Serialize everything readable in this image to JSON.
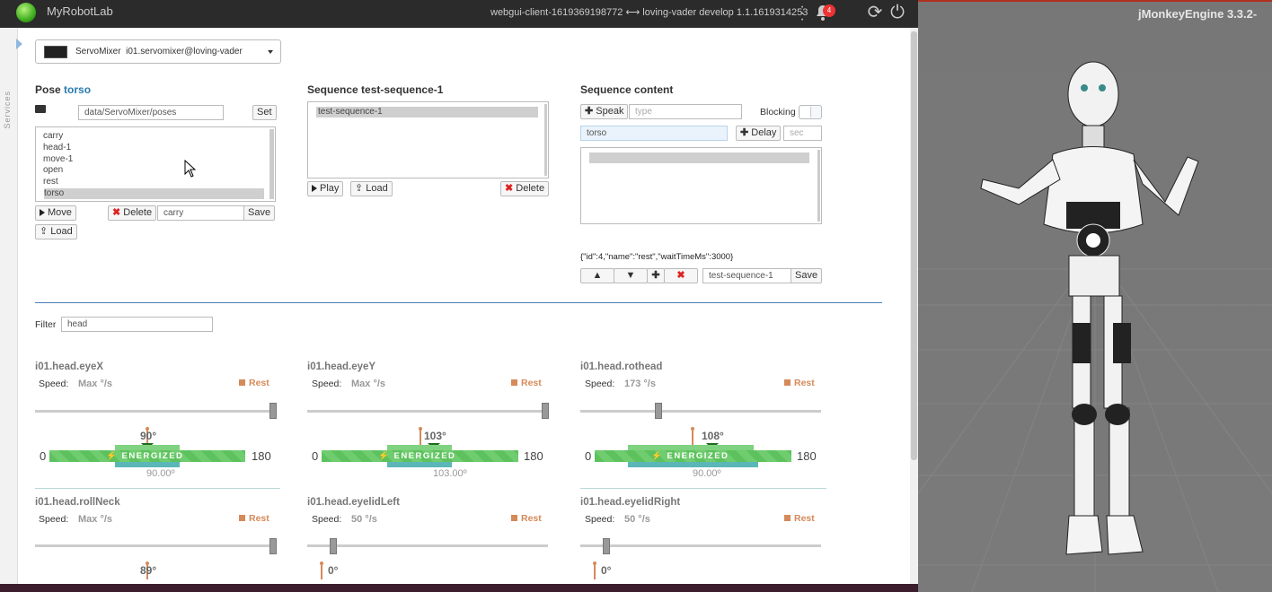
{
  "topbar": {
    "app_name": "MyRobotLab",
    "client_info": "webgui-client-1619369198772 ⟷ loving-vader develop 1.1.1619314253",
    "notifications": "4",
    "icons": [
      "logo-icon",
      "kebab-icon",
      "bell-icon",
      "refresh-icon",
      "power-icon"
    ]
  },
  "sidebar": {
    "label": "Services"
  },
  "service": {
    "type": "ServoMixer",
    "name": "i01.servomixer@loving-vader"
  },
  "pose": {
    "label": "Pose",
    "current": "torso",
    "path": "data/ServoMixer/poses",
    "set_label": "Set",
    "items": [
      "carry",
      "head-1",
      "move-1",
      "open",
      "rest",
      "torso"
    ],
    "selected_index": 5,
    "move_label": "Move",
    "delete_label": "Delete",
    "name_value": "carry",
    "save_label": "Save",
    "load_label": "Load"
  },
  "sequence": {
    "label": "Sequence",
    "current": "test-sequence-1",
    "items": [
      "test-sequence-1"
    ],
    "play_label": "Play",
    "load_label": "Load",
    "delete_label": "Delete"
  },
  "content": {
    "label": "Sequence content",
    "speak_label": "Speak",
    "speak_placeholder": "type",
    "blocking_label": "Blocking",
    "pose_value": "torso",
    "delay_label": "Delay",
    "delay_placeholder": "sec",
    "json_text": "{\"id\":4,\"name\":\"rest\",\"waitTimeMs\":3000}",
    "name_value": "test-sequence-1",
    "save_label": "Save"
  },
  "filter": {
    "label": "Filter",
    "value": "head"
  },
  "servos": [
    {
      "name": "i01.head.eyeX",
      "speed_label": "Speed:",
      "speed": "Max °/s",
      "rest": "Rest",
      "speed_fraction": 1.0,
      "position": "90°",
      "min": "0",
      "max": "180",
      "energized": "ENERGIZED",
      "target": "90.00º"
    },
    {
      "name": "i01.head.eyeY",
      "speed_label": "Speed:",
      "speed": "Max °/s",
      "rest": "Rest",
      "speed_fraction": 1.0,
      "position": "103°",
      "min": "0",
      "max": "180",
      "energized": "ENERGIZED",
      "target": "103.00º"
    },
    {
      "name": "i01.head.rothead",
      "speed_label": "Speed:",
      "speed": "173 °/s",
      "rest": "Rest",
      "speed_fraction": 0.32,
      "position": "108°",
      "min": "0",
      "max": "180",
      "energized": "ENERGIZED",
      "target": "90.00º"
    },
    {
      "name": "i01.head.rollNeck",
      "speed_label": "Speed:",
      "speed": "Max °/s",
      "rest": "Rest",
      "speed_fraction": 1.0,
      "position": "89°"
    },
    {
      "name": "i01.head.eyelidLeft",
      "speed_label": "Speed:",
      "speed": "50 °/s",
      "rest": "Rest",
      "speed_fraction": 0.1,
      "position": "0°"
    },
    {
      "name": "i01.head.eyelidRight",
      "speed_label": "Speed:",
      "speed": "50 °/s",
      "rest": "Rest",
      "speed_fraction": 0.1,
      "position": "0°"
    }
  ],
  "jme": {
    "title": "jMonkeyEngine 3.3.2-"
  },
  "colors": {
    "accent": "#2a7ab0",
    "energized": "#5dc25d",
    "rest": "#d58a5a",
    "topbar": "#2b2b2b"
  }
}
